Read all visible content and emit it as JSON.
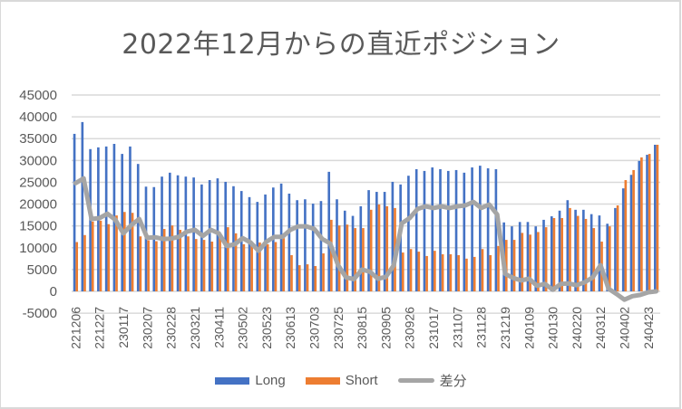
{
  "chart_data": {
    "type": "bar",
    "title": "2022年12月からの直近ポジション",
    "xlabel": "",
    "ylabel": "",
    "ylim": [
      -5000,
      45000
    ],
    "ytick_step": 5000,
    "grid": true,
    "legend_position": "bottom",
    "x_tick_labels": [
      "221206",
      "221227",
      "230117",
      "230207",
      "230228",
      "230321",
      "230411",
      "230502",
      "230523",
      "230613",
      "230703",
      "230725",
      "230815",
      "230905",
      "230926",
      "231017",
      "231107",
      "231128",
      "231219",
      "240109",
      "240130",
      "240220",
      "240312",
      "240402",
      "240423"
    ],
    "x_tick_every": 3,
    "series": [
      {
        "name": "Long",
        "kind": "bar",
        "color": "#4472c4",
        "values": [
          36100,
          38800,
          32600,
          33000,
          33200,
          33800,
          31500,
          33200,
          29200,
          24000,
          23900,
          26300,
          27200,
          26600,
          26300,
          26100,
          24500,
          25500,
          25900,
          25100,
          24100,
          23000,
          21600,
          20500,
          22200,
          23800,
          24700,
          22400,
          20900,
          21100,
          20100,
          20700,
          27400,
          21100,
          18500,
          17300,
          19500,
          23200,
          22800,
          22800,
          25100,
          24500,
          26500,
          28000,
          27600,
          28400,
          28000,
          27600,
          27800,
          27200,
          28400,
          28800,
          28200,
          28000,
          15800,
          14900,
          15900,
          15900,
          14900,
          16400,
          17200,
          18500,
          20900,
          18700,
          18700,
          17700,
          17400,
          15500,
          19100,
          23600,
          26700,
          29900,
          31300,
          33600
        ]
      },
      {
        "name": "Short",
        "kind": "bar",
        "color": "#ed7d31",
        "values": [
          11300,
          12900,
          16000,
          16200,
          15400,
          17400,
          18200,
          18000,
          12600,
          11700,
          11500,
          14300,
          15100,
          14100,
          12600,
          12000,
          11800,
          11400,
          12600,
          14700,
          13300,
          10800,
          10400,
          11200,
          10800,
          11300,
          12200,
          8300,
          6000,
          6200,
          5800,
          8700,
          16400,
          15100,
          15300,
          14500,
          14500,
          18700,
          19900,
          19500,
          19100,
          8900,
          9700,
          9100,
          8100,
          9300,
          8500,
          8500,
          8300,
          7500,
          7900,
          9700,
          8300,
          10400,
          11800,
          11800,
          13400,
          13000,
          13600,
          14700,
          16800,
          16800,
          19100,
          17300,
          16600,
          14500,
          11400,
          14900,
          19700,
          25500,
          27800,
          30700,
          31500,
          33600
        ]
      },
      {
        "name": "差分",
        "kind": "line",
        "color": "#a5a5a5",
        "values": [
          24800,
          25900,
          16600,
          16800,
          17800,
          16400,
          13300,
          15200,
          16600,
          12300,
          12400,
          12000,
          12100,
          12500,
          13700,
          14100,
          12700,
          14100,
          13300,
          10400,
          10800,
          12200,
          11200,
          9300,
          11400,
          12500,
          12500,
          14100,
          14900,
          14900,
          14300,
          12000,
          11000,
          6000,
          3200,
          2800,
          5000,
          4500,
          2900,
          3300,
          6000,
          15600,
          16800,
          18900,
          19500,
          19100,
          19500,
          19100,
          19500,
          19700,
          20500,
          19100,
          19900,
          17600,
          4000,
          3100,
          2500,
          2900,
          1300,
          1700,
          400,
          1700,
          1800,
          1400,
          2100,
          3200,
          6000,
          600,
          -600,
          -1900,
          -1100,
          -800,
          -200,
          0
        ]
      }
    ],
    "legend": [
      "Long",
      "Short",
      "差分"
    ]
  }
}
